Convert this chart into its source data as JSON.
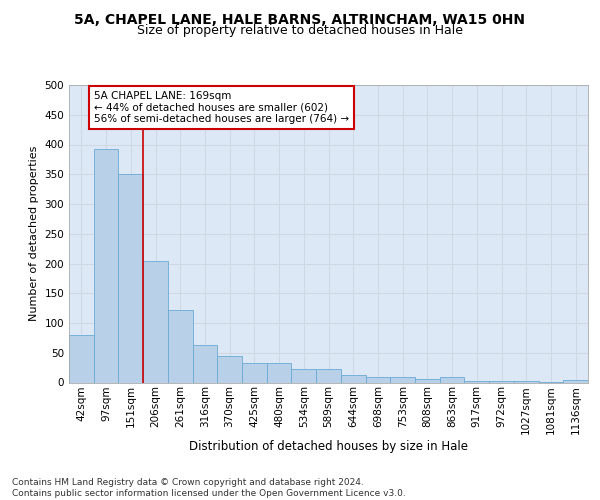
{
  "title1": "5A, CHAPEL LANE, HALE BARNS, ALTRINCHAM, WA15 0HN",
  "title2": "Size of property relative to detached houses in Hale",
  "xlabel": "Distribution of detached houses by size in Hale",
  "ylabel": "Number of detached properties",
  "categories": [
    "42sqm",
    "97sqm",
    "151sqm",
    "206sqm",
    "261sqm",
    "316sqm",
    "370sqm",
    "425sqm",
    "480sqm",
    "534sqm",
    "589sqm",
    "644sqm",
    "698sqm",
    "753sqm",
    "808sqm",
    "863sqm",
    "917sqm",
    "972sqm",
    "1027sqm",
    "1081sqm",
    "1136sqm"
  ],
  "values": [
    80,
    393,
    350,
    205,
    122,
    63,
    45,
    33,
    33,
    22,
    23,
    13,
    9,
    9,
    6,
    10,
    3,
    3,
    2,
    1,
    4
  ],
  "bar_color": "#b8d0e8",
  "bar_edge_color": "#6aaad4",
  "vline_color": "#cc0000",
  "annotation_text": "5A CHAPEL LANE: 169sqm\n← 44% of detached houses are smaller (602)\n56% of semi-detached houses are larger (764) →",
  "annotation_box_color": "#ffffff",
  "annotation_box_edge_color": "#cc0000",
  "ylim": [
    0,
    500
  ],
  "yticks": [
    0,
    50,
    100,
    150,
    200,
    250,
    300,
    350,
    400,
    450,
    500
  ],
  "grid_color": "#d0d8e4",
  "background_color": "#dce8f5",
  "footer_text": "Contains HM Land Registry data © Crown copyright and database right 2024.\nContains public sector information licensed under the Open Government Licence v3.0.",
  "title1_fontsize": 10,
  "title2_fontsize": 9,
  "xlabel_fontsize": 8.5,
  "ylabel_fontsize": 8,
  "tick_fontsize": 7.5,
  "annotation_fontsize": 7.5,
  "footer_fontsize": 6.5
}
